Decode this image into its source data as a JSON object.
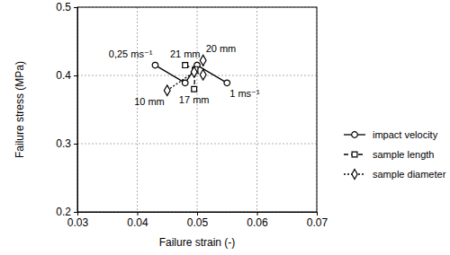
{
  "chart_data": {
    "type": "scatter",
    "x_label": "Failure strain (-)",
    "y_label": "Failure stress (MPa)",
    "xlim": [
      0.03,
      0.07
    ],
    "xticks": [
      0.03,
      0.04,
      0.05,
      0.06,
      0.07
    ],
    "ylim": [
      0.2,
      0.5
    ],
    "yticks": [
      0.2,
      0.3,
      0.4,
      0.5
    ],
    "grid": true,
    "legend": "right",
    "series": [
      {
        "name": "impact velocity",
        "color": "#000000",
        "marker": "circle",
        "line_style": "solid",
        "x": [
          0.043,
          0.048,
          0.05,
          0.055
        ],
        "values": [
          0.415,
          0.389,
          0.415,
          0.389
        ],
        "labels": [
          "0,25 ms⁻¹",
          null,
          null,
          "1 ms⁻¹"
        ]
      },
      {
        "name": "sample length",
        "color": "#000000",
        "marker": "square",
        "line_style": "dashed",
        "x": [
          0.048,
          0.0497,
          0.0495
        ],
        "values": [
          0.415,
          0.409,
          0.38
        ],
        "labels": [
          "21 mm",
          null,
          "17 mm"
        ]
      },
      {
        "name": "sample diameter",
        "color": "#000000",
        "marker": "diamond",
        "line_style": "dotted",
        "x": [
          0.045,
          0.0495,
          0.051,
          0.051
        ],
        "values": [
          0.378,
          0.405,
          0.401,
          0.422
        ],
        "labels": [
          "10 mm",
          null,
          null,
          "20 mm"
        ]
      }
    ]
  }
}
